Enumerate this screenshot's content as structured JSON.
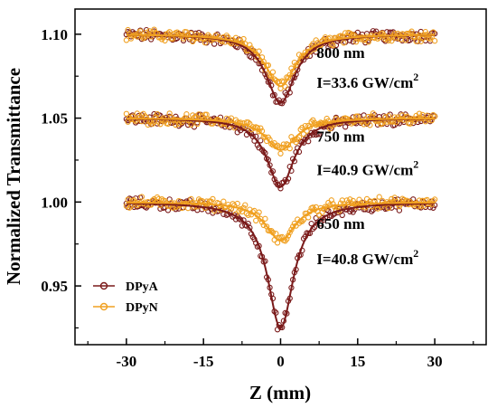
{
  "chart_data": {
    "type": "scatter",
    "xlabel": "Z (mm)",
    "ylabel": "Normalized Transmittance",
    "xlim": [
      -40,
      40
    ],
    "ylim": [
      0.915,
      1.115
    ],
    "xticks": [
      -30,
      -15,
      0,
      15,
      30
    ],
    "xtick_labels": [
      "-30",
      "-15",
      "0",
      "15",
      "30"
    ],
    "yticks": [
      0.95,
      1.0,
      1.05,
      1.1
    ],
    "ytick_labels": [
      "0.95",
      "1.00",
      "1.05",
      "1.10"
    ],
    "x_range_data": [
      -30,
      30
    ],
    "grid": false,
    "legend_position": "bottom-left",
    "legend": [
      {
        "label": "DPyA",
        "color": "#7a1a1a"
      },
      {
        "label": "DPyN",
        "color": "#f0a020"
      }
    ],
    "series": [
      {
        "name": "DPyA",
        "group": "800 nm",
        "baseline": 1.1,
        "dip_depth": 0.041,
        "dip_width_mm": 3.4,
        "color": "#7a1a1a"
      },
      {
        "name": "DPyN",
        "group": "800 nm",
        "baseline": 1.1,
        "dip_depth": 0.031,
        "dip_width_mm": 3.6,
        "color": "#f0a020"
      },
      {
        "name": "DPyA",
        "group": "750 nm",
        "baseline": 1.05,
        "dip_depth": 0.041,
        "dip_width_mm": 3.2,
        "color": "#7a1a1a"
      },
      {
        "name": "DPyN",
        "group": "750 nm",
        "baseline": 1.05,
        "dip_depth": 0.019,
        "dip_width_mm": 3.6,
        "color": "#f0a020"
      },
      {
        "name": "DPyA",
        "group": "650 nm",
        "baseline": 1.0,
        "dip_depth": 0.075,
        "dip_width_mm": 3.1,
        "color": "#7a1a1a"
      },
      {
        "name": "DPyN",
        "group": "650 nm",
        "baseline": 1.0,
        "dip_depth": 0.023,
        "dip_width_mm": 3.5,
        "color": "#f0a020"
      }
    ],
    "annotations": [
      {
        "wavelength": "800 nm",
        "intensity_prefix": "I=33.6 GW/cm",
        "intensity_sup": "2",
        "anchor_x": 7,
        "wavelength_y": 1.086,
        "intensity_y": 1.068
      },
      {
        "wavelength": "750 nm",
        "intensity_prefix": "I=40.9 GW/cm",
        "intensity_sup": "2",
        "anchor_x": 7,
        "wavelength_y": 1.036,
        "intensity_y": 1.016
      },
      {
        "wavelength": "650 nm",
        "intensity_prefix": "I=40.8 GW/cm",
        "intensity_sup": "2",
        "anchor_x": 7,
        "wavelength_y": 0.984,
        "intensity_y": 0.963
      }
    ]
  }
}
